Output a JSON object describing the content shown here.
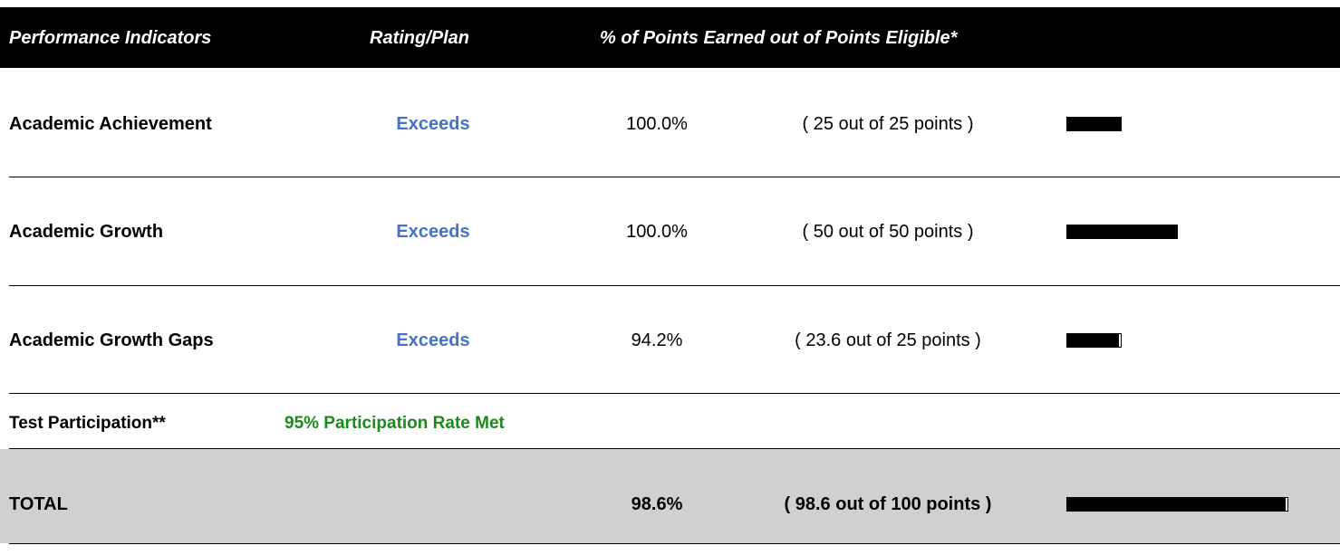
{
  "header": {
    "columns": [
      "Performance Indicators",
      "Rating/Plan",
      "% of Points Earned out of Points Eligible*"
    ]
  },
  "rows": [
    {
      "indicator": "Academic Achievement",
      "rating": "Exceeds",
      "percent": "100.0%",
      "points": "( 25 out of 25 points )",
      "earned": 25,
      "eligible": 25
    },
    {
      "indicator": "Academic Growth",
      "rating": "Exceeds",
      "percent": "100.0%",
      "points": "( 50 out of 50 points )",
      "earned": 50,
      "eligible": 50
    },
    {
      "indicator": "Academic Growth Gaps",
      "rating": "Exceeds",
      "percent": "94.2%",
      "points": "( 23.6 out of 25 points )",
      "earned": 23.6,
      "eligible": 25
    }
  ],
  "participation": {
    "indicator": "Test Participation**",
    "rating": "95% Participation Rate Met"
  },
  "total": {
    "indicator": "TOTAL",
    "percent": "98.6%",
    "points": "( 98.6 out of 100 points )",
    "earned": 98.6,
    "eligible": 100
  }
}
